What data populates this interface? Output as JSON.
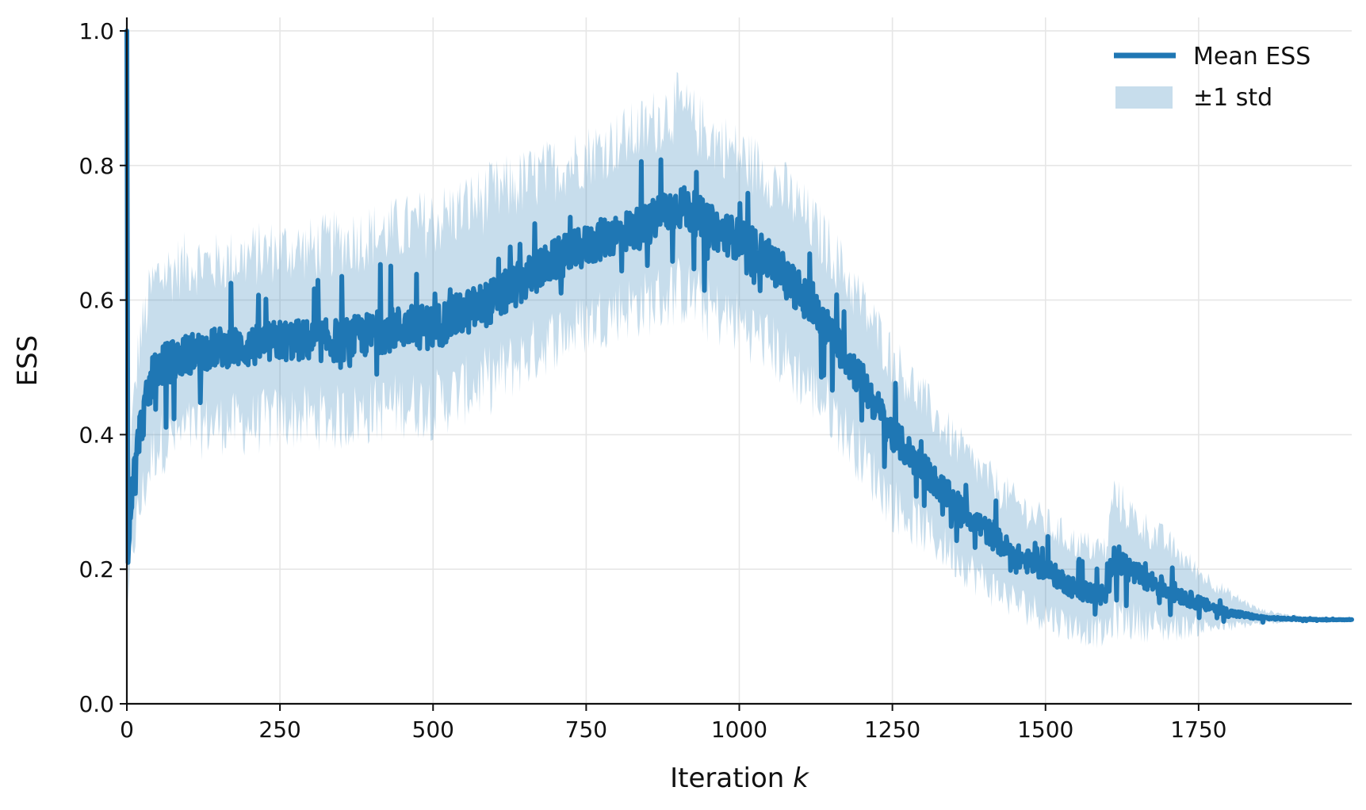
{
  "chart_data": {
    "type": "line",
    "title": "",
    "xlabel": "Iteration ",
    "xlabel_var": "k",
    "ylabel": "ESS",
    "xlim": [
      0,
      2000
    ],
    "ylim": [
      0,
      1.02
    ],
    "x_ticks": [
      0,
      250,
      500,
      750,
      1000,
      1250,
      1500,
      1750
    ],
    "x_tick_labels": [
      "0",
      "250",
      "500",
      "750",
      "1000",
      "1250",
      "1500",
      "1750"
    ],
    "y_ticks": [
      0.0,
      0.2,
      0.4,
      0.6,
      0.8,
      1.0
    ],
    "y_tick_labels": [
      "0.0",
      "0.2",
      "0.4",
      "0.6",
      "0.8",
      "1.0"
    ],
    "grid": true,
    "legend_position": "top-right",
    "colors": {
      "line": "#1f77b4",
      "band": "#1f77b4",
      "band_opacity": 0.25
    },
    "series": [
      {
        "name": "Mean ESS",
        "style": "line",
        "x": [
          0,
          2,
          5,
          10,
          20,
          30,
          40,
          50,
          75,
          100,
          150,
          200,
          250,
          300,
          350,
          400,
          450,
          500,
          550,
          600,
          650,
          700,
          750,
          800,
          850,
          875,
          900,
          925,
          950,
          1000,
          1050,
          1100,
          1150,
          1200,
          1250,
          1300,
          1350,
          1400,
          1450,
          1500,
          1550,
          1600,
          1610,
          1650,
          1700,
          1750,
          1800,
          1850,
          1900,
          1950,
          2000
        ],
        "values": [
          1.0,
          0.21,
          0.28,
          0.33,
          0.4,
          0.44,
          0.48,
          0.5,
          0.51,
          0.52,
          0.53,
          0.53,
          0.54,
          0.54,
          0.54,
          0.55,
          0.56,
          0.56,
          0.58,
          0.6,
          0.63,
          0.66,
          0.68,
          0.7,
          0.71,
          0.73,
          0.74,
          0.73,
          0.71,
          0.69,
          0.66,
          0.61,
          0.55,
          0.48,
          0.4,
          0.35,
          0.3,
          0.26,
          0.22,
          0.2,
          0.17,
          0.16,
          0.22,
          0.19,
          0.17,
          0.15,
          0.135,
          0.128,
          0.126,
          0.125,
          0.125
        ]
      },
      {
        "name": "±1 std",
        "style": "band",
        "x": [
          0,
          2,
          5,
          10,
          20,
          30,
          40,
          50,
          75,
          100,
          150,
          200,
          250,
          300,
          350,
          400,
          450,
          500,
          550,
          600,
          650,
          700,
          750,
          800,
          850,
          875,
          900,
          925,
          950,
          1000,
          1050,
          1100,
          1150,
          1200,
          1250,
          1300,
          1350,
          1400,
          1450,
          1500,
          1550,
          1600,
          1610,
          1650,
          1700,
          1750,
          1800,
          1850,
          1900,
          1950,
          2000
        ],
        "lower": [
          1.0,
          0.15,
          0.2,
          0.25,
          0.3,
          0.34,
          0.38,
          0.4,
          0.41,
          0.42,
          0.43,
          0.43,
          0.44,
          0.44,
          0.44,
          0.45,
          0.46,
          0.46,
          0.48,
          0.5,
          0.53,
          0.56,
          0.58,
          0.6,
          0.61,
          0.62,
          0.63,
          0.62,
          0.6,
          0.58,
          0.55,
          0.5,
          0.45,
          0.38,
          0.31,
          0.27,
          0.23,
          0.19,
          0.16,
          0.14,
          0.12,
          0.11,
          0.14,
          0.13,
          0.12,
          0.12,
          0.118,
          0.121,
          0.123,
          0.124,
          0.124
        ],
        "upper": [
          1.0,
          0.28,
          0.36,
          0.42,
          0.52,
          0.56,
          0.6,
          0.62,
          0.63,
          0.64,
          0.64,
          0.65,
          0.66,
          0.66,
          0.67,
          0.68,
          0.69,
          0.7,
          0.72,
          0.74,
          0.76,
          0.78,
          0.8,
          0.82,
          0.84,
          0.86,
          0.87,
          0.85,
          0.83,
          0.8,
          0.77,
          0.72,
          0.66,
          0.58,
          0.5,
          0.44,
          0.38,
          0.33,
          0.29,
          0.26,
          0.23,
          0.22,
          0.3,
          0.26,
          0.23,
          0.19,
          0.16,
          0.138,
          0.131,
          0.127,
          0.126
        ]
      }
    ]
  }
}
